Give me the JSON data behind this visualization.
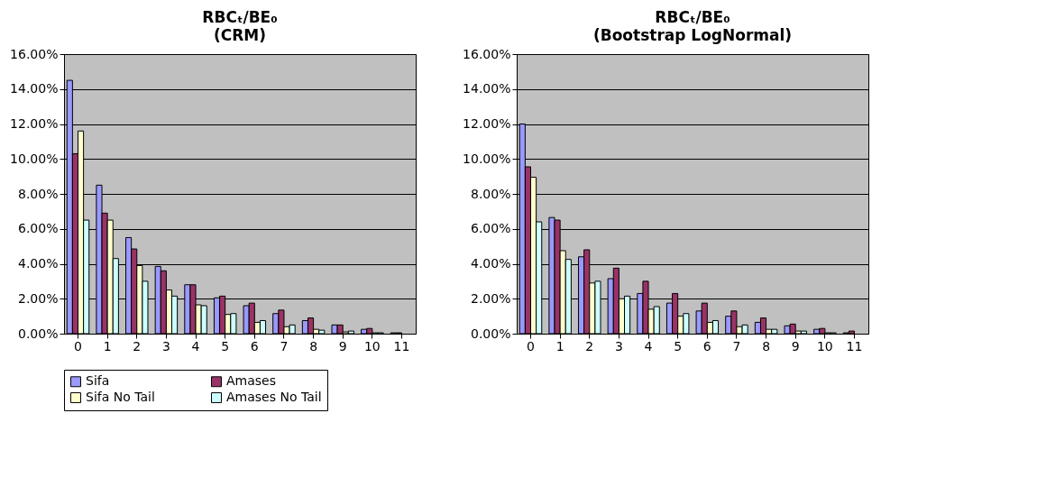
{
  "chart_data": [
    {
      "type": "bar",
      "title": "RBCₜ/BE₀",
      "subtitle": "(CRM)",
      "categories": [
        "0",
        "1",
        "2",
        "3",
        "4",
        "5",
        "6",
        "7",
        "8",
        "9",
        "10",
        "11"
      ],
      "series": [
        {
          "name": "Sifa",
          "color": "#9999ff",
          "values": [
            14.5,
            8.5,
            5.5,
            3.85,
            2.8,
            2.05,
            1.6,
            1.15,
            0.75,
            0.5,
            0.25,
            0.05
          ]
        },
        {
          "name": "Amases",
          "color": "#993366",
          "values": [
            10.3,
            6.9,
            4.85,
            3.6,
            2.8,
            2.15,
            1.75,
            1.35,
            0.9,
            0.5,
            0.3,
            0.05
          ]
        },
        {
          "name": "Sifa No Tail",
          "color": "#ffffcc",
          "values": [
            11.6,
            6.5,
            3.9,
            2.5,
            1.65,
            1.1,
            0.65,
            0.4,
            0.25,
            0.1,
            0.05,
            null
          ]
        },
        {
          "name": "Amases No Tail",
          "color": "#ccffff",
          "values": [
            6.5,
            4.3,
            3.0,
            2.15,
            1.6,
            1.15,
            0.75,
            0.5,
            0.2,
            0.15,
            0.05,
            null
          ]
        }
      ],
      "ylim": [
        0,
        16
      ],
      "yticks": [
        {
          "value": 0,
          "label": "0.00%"
        },
        {
          "value": 2,
          "label": "2.00%"
        },
        {
          "value": 4,
          "label": "4.00%"
        },
        {
          "value": 6,
          "label": "6.00%"
        },
        {
          "value": 8,
          "label": "8.00%"
        },
        {
          "value": 10,
          "label": "10.00%"
        },
        {
          "value": 12,
          "label": "12.00%"
        },
        {
          "value": 14,
          "label": "14.00%"
        },
        {
          "value": 16,
          "label": "16.00%"
        }
      ],
      "grid": "y",
      "legend": "bottom"
    },
    {
      "type": "bar",
      "title": "RBCₜ/BE₀",
      "subtitle": "(Bootstrap LogNormal)",
      "categories": [
        "0",
        "1",
        "2",
        "3",
        "4",
        "5",
        "6",
        "7",
        "8",
        "9",
        "10",
        "11"
      ],
      "series": [
        {
          "name": "Sifa",
          "color": "#9999ff",
          "values": [
            12.0,
            6.65,
            4.4,
            3.15,
            2.3,
            1.75,
            1.3,
            1.0,
            0.65,
            0.45,
            0.25,
            0.05
          ]
        },
        {
          "name": "Amases",
          "color": "#993366",
          "values": [
            9.55,
            6.5,
            4.8,
            3.75,
            3.0,
            2.3,
            1.75,
            1.3,
            0.9,
            0.55,
            0.3,
            0.15
          ]
        },
        {
          "name": "Sifa No Tail",
          "color": "#ffffcc",
          "values": [
            8.95,
            4.75,
            2.9,
            2.0,
            1.4,
            1.0,
            0.65,
            0.4,
            0.25,
            0.15,
            0.05,
            null
          ]
        },
        {
          "name": "Amases No Tail",
          "color": "#ccffff",
          "values": [
            6.4,
            4.25,
            3.0,
            2.15,
            1.55,
            1.15,
            0.75,
            0.5,
            0.25,
            0.15,
            0.05,
            null
          ]
        }
      ],
      "ylim": [
        0,
        16
      ],
      "yticks": [
        {
          "value": 0,
          "label": "0.00%"
        },
        {
          "value": 2,
          "label": "2.00%"
        },
        {
          "value": 4,
          "label": "4.00%"
        },
        {
          "value": 6,
          "label": "6.00%"
        },
        {
          "value": 8,
          "label": "8.00%"
        },
        {
          "value": 10,
          "label": "10.00%"
        },
        {
          "value": 12,
          "label": "12.00%"
        },
        {
          "value": 14,
          "label": "14.00%"
        },
        {
          "value": 16,
          "label": "16.00%"
        }
      ],
      "grid": "y",
      "legend": "bottom"
    }
  ]
}
